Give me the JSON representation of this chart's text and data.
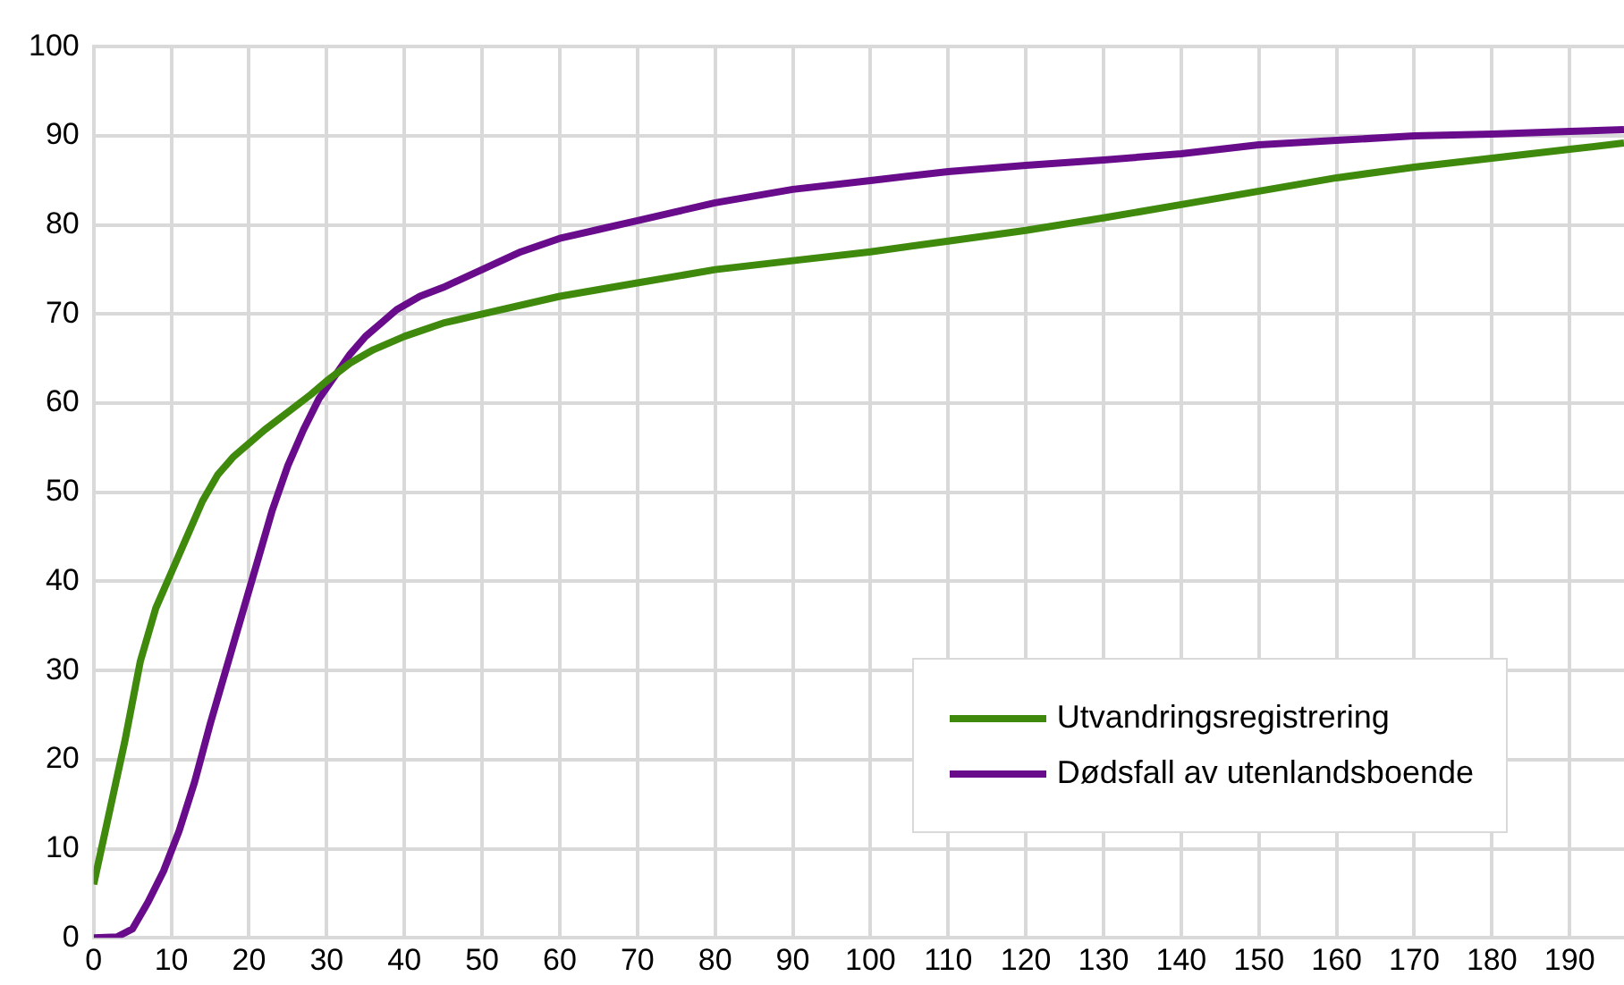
{
  "chart_data": {
    "type": "line",
    "xlim": [
      0,
      197
    ],
    "xticks": [
      0,
      10,
      20,
      30,
      40,
      50,
      60,
      70,
      80,
      90,
      100,
      110,
      120,
      130,
      140,
      150,
      160,
      170,
      180,
      190
    ],
    "ylim": [
      0,
      100
    ],
    "yticks": [
      0,
      10,
      20,
      30,
      40,
      50,
      60,
      70,
      80,
      90,
      100
    ],
    "grid": true,
    "legend": "bottom right",
    "marker": "none",
    "line_style": "solid",
    "series": [
      {
        "name": "Utvandringsregistrering",
        "color": "#3f8a0c",
        "x": [
          0,
          2,
          4,
          6,
          8,
          10,
          12,
          14,
          16,
          18,
          20,
          22,
          25,
          28,
          30,
          33,
          36,
          40,
          45,
          50,
          60,
          70,
          80,
          90,
          100,
          110,
          120,
          130,
          140,
          150,
          160,
          170,
          180,
          190,
          197
        ],
        "values": [
          6,
          14,
          22,
          31,
          37,
          41,
          45,
          49,
          52,
          54,
          55.5,
          57,
          59,
          61,
          62.5,
          64.5,
          66,
          67.5,
          69,
          70,
          72,
          73.5,
          75,
          76,
          77,
          78.2,
          79.4,
          80.8,
          82.3,
          83.8,
          85.3,
          86.5,
          87.5,
          88.5,
          89.2
        ]
      },
      {
        "name": "Dødsfall av utenlandsboende",
        "color": "#690c8c",
        "x": [
          0,
          3,
          5,
          7,
          9,
          11,
          13,
          15,
          17,
          19,
          21,
          23,
          25,
          27,
          29,
          31,
          33,
          35,
          37,
          39,
          42,
          45,
          50,
          55,
          60,
          65,
          70,
          75,
          80,
          90,
          100,
          110,
          120,
          130,
          140,
          150,
          160,
          170,
          180,
          190,
          197
        ],
        "values": [
          0,
          0.1,
          1,
          4,
          7.5,
          12,
          17.5,
          24,
          30,
          36,
          42,
          48,
          53,
          57,
          60.5,
          63,
          65.5,
          67.5,
          69,
          70.5,
          72,
          73,
          75,
          77,
          78.5,
          79.5,
          80.5,
          81.5,
          82.5,
          84,
          85,
          86,
          86.7,
          87.3,
          88,
          89,
          89.5,
          90,
          90.2,
          90.5,
          90.7
        ]
      }
    ]
  }
}
